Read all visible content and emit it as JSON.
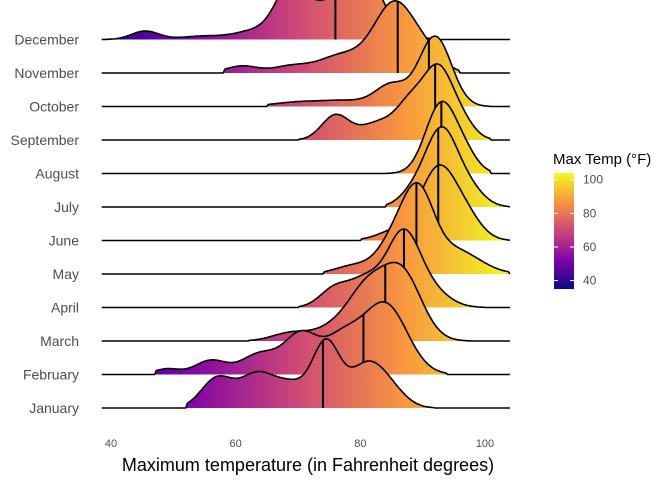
{
  "chart_data": {
    "type": "ridgeline",
    "xlabel": "Maximum temperature (in Fahrenheit degrees)",
    "xlim": [
      38.5,
      104
    ],
    "xticks": [
      "40",
      "60",
      "80",
      "100"
    ],
    "legend": {
      "title": "Max Temp (°F)",
      "position": "right",
      "ticks": [
        "40",
        "60",
        "80",
        "100"
      ],
      "range": [
        35,
        104
      ],
      "colors": [
        "#0d0887",
        "#7e03a8",
        "#cc4778",
        "#f89540",
        "#f0f921"
      ]
    },
    "series": [
      {
        "name": "January",
        "median": 74,
        "range": [
          52,
          92
        ],
        "peaks": [
          [
            57,
            0.42,
            2.5
          ],
          [
            63.5,
            0.48,
            2.8
          ],
          [
            69,
            0.3,
            2.5
          ],
          [
            74.5,
            0.92,
            2.2
          ],
          [
            81,
            0.6,
            2.8
          ],
          [
            85,
            0.2,
            2.5
          ]
        ]
      },
      {
        "name": "February",
        "median": 80.5,
        "range": [
          47,
          94
        ],
        "peaks": [
          [
            49,
            0.08,
            2
          ],
          [
            56,
            0.2,
            2.5
          ],
          [
            64,
            0.3,
            3
          ],
          [
            70.5,
            0.55,
            2.6
          ],
          [
            77,
            0.5,
            3
          ],
          [
            84,
            1.0,
            3.5
          ]
        ]
      },
      {
        "name": "March",
        "median": 84,
        "range": [
          62,
          98
        ],
        "peaks": [
          [
            69,
            0.12,
            3
          ],
          [
            76.5,
            0.22,
            3.2
          ],
          [
            81,
            0.6,
            2.8
          ],
          [
            86.5,
            1.0,
            3.2
          ]
        ]
      },
      {
        "name": "April",
        "median": 87,
        "range": [
          70,
          100
        ],
        "peaks": [
          [
            76,
            0.28,
            2.4
          ],
          [
            81,
            0.38,
            2.5
          ],
          [
            86.8,
            1.0,
            2.6
          ],
          [
            91,
            0.25,
            3
          ]
        ]
      },
      {
        "name": "May",
        "median": 89,
        "range": [
          74,
          104
        ],
        "peaks": [
          [
            79,
            0.12,
            3
          ],
          [
            86,
            0.55,
            2.8
          ],
          [
            89.5,
            0.9,
            2.4
          ],
          [
            95,
            0.35,
            4
          ]
        ]
      },
      {
        "name": "June",
        "median": 92.5,
        "range": [
          80,
          104
        ],
        "peaks": [
          [
            86,
            0.15,
            3
          ],
          [
            92.5,
            1.0,
            2.8
          ],
          [
            97,
            0.3,
            2.5
          ]
        ]
      },
      {
        "name": "July",
        "median": 92.5,
        "range": [
          84,
          104
        ],
        "peaks": [
          [
            89,
            0.25,
            2.4
          ],
          [
            93,
            1.0,
            2.4
          ],
          [
            97,
            0.3,
            2.5
          ]
        ]
      },
      {
        "name": "August",
        "median": 93,
        "range": [
          84,
          101
        ],
        "peaks": [
          [
            93,
            1.0,
            2.5
          ],
          [
            97,
            0.2,
            2
          ]
        ]
      },
      {
        "name": "September",
        "median": 92,
        "range": [
          70,
          101
        ],
        "peaks": [
          [
            76,
            0.35,
            2.2
          ],
          [
            83,
            0.25,
            3
          ],
          [
            88,
            0.45,
            2.2
          ],
          [
            92.5,
            1.0,
            2.4
          ],
          [
            96.5,
            0.2,
            2
          ]
        ]
      },
      {
        "name": "October",
        "median": 91,
        "range": [
          65,
          101
        ],
        "peaks": [
          [
            70,
            0.06,
            4
          ],
          [
            78,
            0.08,
            4
          ],
          [
            85,
            0.3,
            2.5
          ],
          [
            92,
            1.0,
            2.6
          ]
        ]
      },
      {
        "name": "November",
        "median": 86,
        "range": [
          58,
          96
        ],
        "peaks": [
          [
            61,
            0.1,
            2.5
          ],
          [
            69,
            0.1,
            3
          ],
          [
            77,
            0.25,
            3.5
          ],
          [
            85.5,
            1.0,
            3.3
          ],
          [
            91,
            0.2,
            2.5
          ]
        ]
      },
      {
        "name": "December",
        "median": 76,
        "range": [
          38.5,
          92
        ],
        "peaks": [
          [
            45.5,
            0.12,
            2.2
          ],
          [
            55,
            0.05,
            3.5
          ],
          [
            63,
            0.12,
            3
          ],
          [
            69,
            0.8,
            2.5
          ],
          [
            75,
            0.45,
            2.5
          ],
          [
            80.5,
            1.0,
            2.6
          ],
          [
            86,
            0.12,
            2.5
          ]
        ]
      }
    ]
  }
}
